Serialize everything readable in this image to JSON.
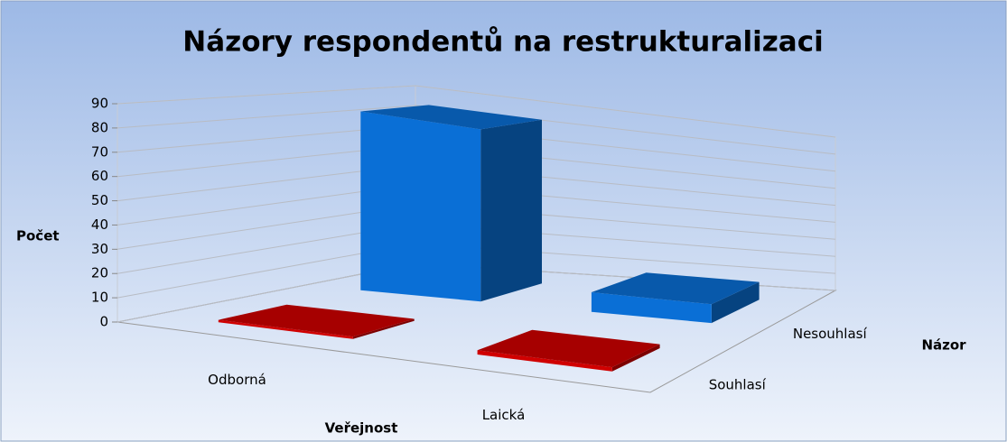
{
  "chart_data": {
    "type": "bar3d",
    "title": "Názory respondentů na restrukturalizaci",
    "categories": [
      "Odborná",
      "Laická"
    ],
    "series": [
      {
        "name": "Souhlasí",
        "color": "#d00000",
        "values": [
          1,
          2
        ]
      },
      {
        "name": "Nesouhlasí",
        "color": "#0a6fd6",
        "values": [
          85,
          10
        ]
      }
    ],
    "ylim": [
      0,
      90
    ],
    "yticks": [
      0,
      10,
      20,
      30,
      40,
      50,
      60,
      70,
      80,
      90
    ],
    "ylabel": "Počet",
    "xlabel": "Veřejnost",
    "zlabel": "Názor",
    "grid": true
  }
}
